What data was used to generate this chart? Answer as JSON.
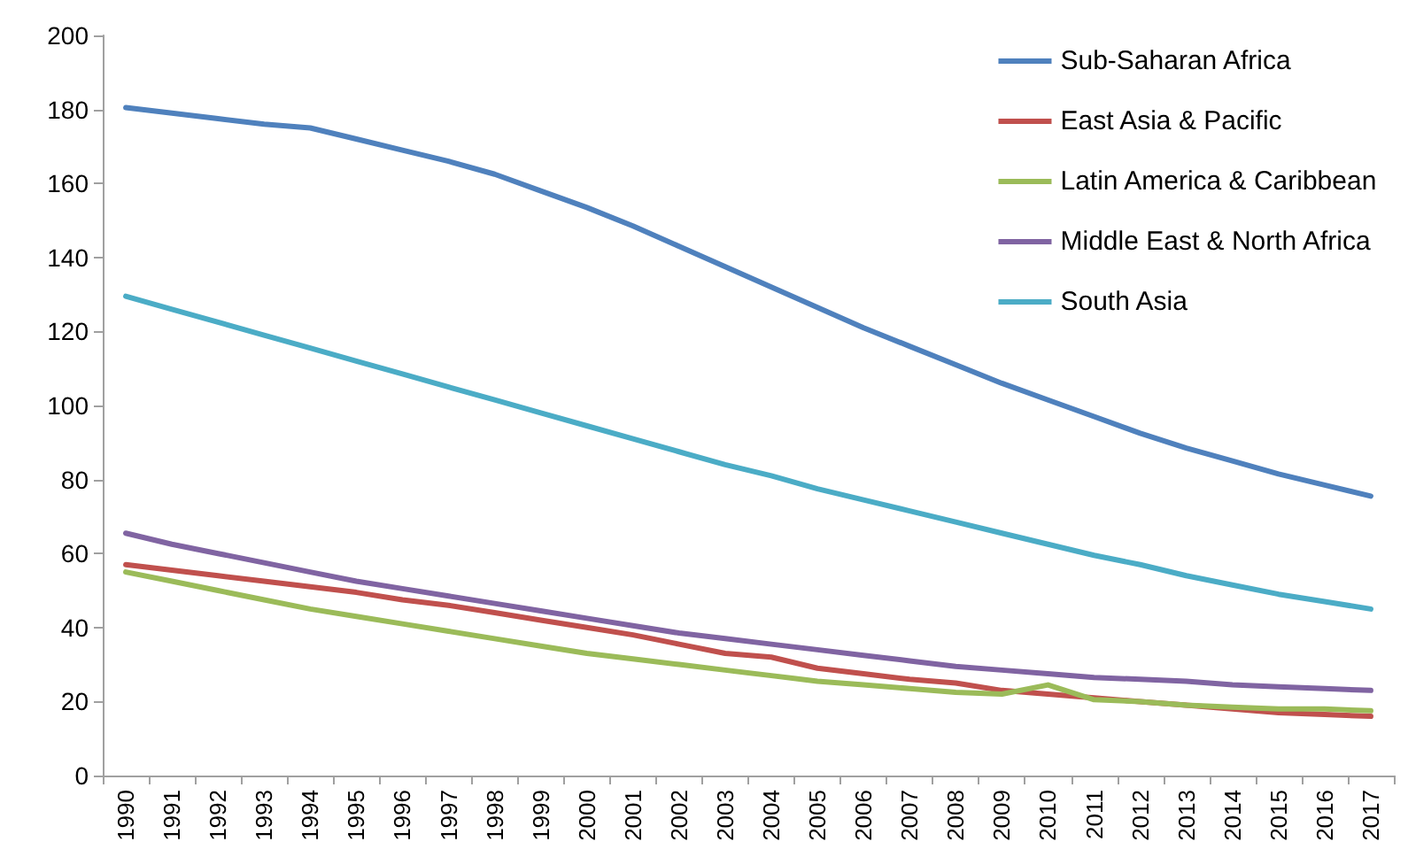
{
  "chart_data": {
    "type": "line",
    "categories": [
      "1990",
      "1991",
      "1992",
      "1993",
      "1994",
      "1995",
      "1996",
      "1997",
      "1998",
      "1999",
      "2000",
      "2001",
      "2002",
      "2003",
      "2004",
      "2005",
      "2006",
      "2007",
      "2008",
      "2009",
      "2010",
      "2011",
      "2012",
      "2013",
      "2014",
      "2015",
      "2016",
      "2017"
    ],
    "series": [
      {
        "name": "Sub-Saharan Africa",
        "color": "#4f81bd",
        "values": [
          180.5,
          179,
          177.5,
          176,
          175,
          172,
          169,
          166,
          162.5,
          158,
          153.5,
          148.5,
          143,
          137.5,
          132,
          126.5,
          121,
          116,
          111,
          106,
          101.5,
          97,
          92.5,
          88.5,
          85,
          81.5,
          78.5,
          75.5
        ]
      },
      {
        "name": "East Asia & Pacific",
        "color": "#c0504d",
        "values": [
          57,
          55.5,
          54,
          52.5,
          51,
          49.5,
          47.5,
          46,
          44,
          42,
          40,
          38,
          35.5,
          33,
          32,
          29,
          27.5,
          26,
          25,
          23,
          22,
          21,
          20,
          19,
          18,
          17,
          16.5,
          16
        ]
      },
      {
        "name": "Latin America & Caribbean",
        "color": "#9bbb59",
        "values": [
          55,
          52.5,
          50,
          47.5,
          45,
          43,
          41,
          39,
          37,
          35,
          33,
          31.5,
          30,
          28.5,
          27,
          25.5,
          24.5,
          23.5,
          22.5,
          22,
          24.5,
          20.5,
          20,
          19,
          18.5,
          18,
          18,
          17.5
        ]
      },
      {
        "name": "Middle East & North Africa",
        "color": "#8064a2",
        "values": [
          65.5,
          62.5,
          60,
          57.5,
          55,
          52.5,
          50.5,
          48.5,
          46.5,
          44.5,
          42.5,
          40.5,
          38.5,
          37,
          35.5,
          34,
          32.5,
          31,
          29.5,
          28.5,
          27.5,
          26.5,
          26,
          25.5,
          24.5,
          24,
          23.5,
          23
        ]
      },
      {
        "name": "South Asia",
        "color": "#4bacc6",
        "values": [
          129.5,
          126,
          122.5,
          119,
          115.5,
          112,
          108.5,
          105,
          101.5,
          98,
          94.5,
          91,
          87.5,
          84,
          81,
          77.5,
          74.5,
          71.5,
          68.5,
          65.5,
          62.5,
          59.5,
          57,
          54,
          51.5,
          49,
          47,
          45
        ]
      }
    ],
    "ylim": [
      0,
      200
    ],
    "yticks": [
      0,
      20,
      40,
      60,
      80,
      100,
      120,
      140,
      160,
      180,
      200
    ],
    "grid": false,
    "legend": "top right",
    "marker": "none",
    "line_style": "solid"
  }
}
